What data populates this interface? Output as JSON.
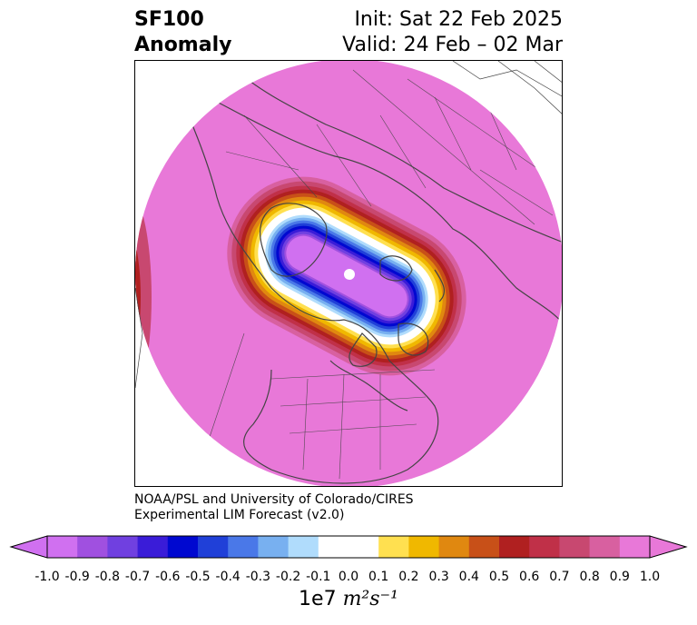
{
  "title": {
    "variable": "SF100",
    "kind": "Anomaly",
    "init": "Init: Sat 22 Feb 2025",
    "valid": "Valid: 24 Feb – 02 Mar"
  },
  "credit": {
    "line1": "NOAA/PSL and University of Colorado/CIRES",
    "line2": "Experimental LIM Forecast (v2.0)"
  },
  "colorbar": {
    "tick_labels": [
      "-1.0",
      "-0.9",
      "-0.8",
      "-0.7",
      "-0.6",
      "-0.5",
      "-0.4",
      "-0.3",
      "-0.2",
      "-0.1",
      "0.0",
      "0.1",
      "0.2",
      "0.3",
      "0.4",
      "0.5",
      "0.6",
      "0.7",
      "0.8",
      "0.9",
      "1.0"
    ],
    "colors": [
      "#d070f0",
      "#a050e0",
      "#7040e0",
      "#3a1cd8",
      "#0008d0",
      "#2040d8",
      "#4a78e8",
      "#78b0f0",
      "#b0dcfc",
      "#ffffff",
      "#ffffff",
      "#ffe050",
      "#f0b800",
      "#e08810",
      "#c85018",
      "#b02020",
      "#c03048",
      "#c84870",
      "#d860a0",
      "#e878d8"
    ],
    "extend_low_color": "#d070f0",
    "extend_high_color": "#e878d8",
    "units_base": "1e7",
    "units_expr": "m²s⁻¹"
  },
  "map": {
    "background_color": "#e878d8",
    "anomaly_center_color": "#d070f0",
    "coastline_color": "#444444"
  }
}
